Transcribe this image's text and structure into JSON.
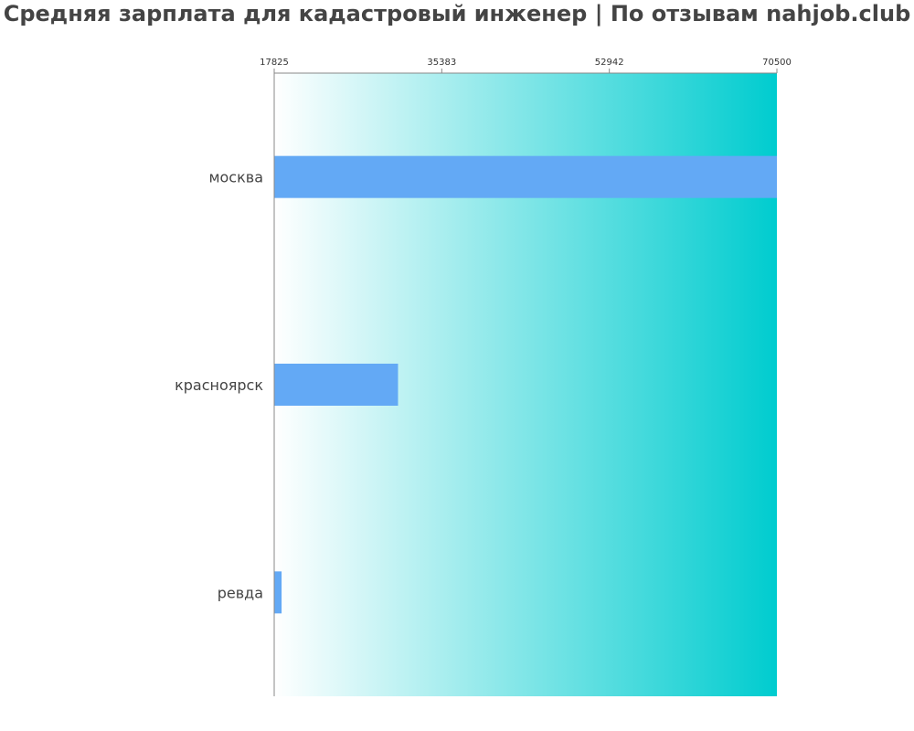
{
  "chart_data": {
    "type": "bar",
    "orientation": "horizontal",
    "title": "Средняя зарплата для кадастровый инженер | По отзывам nahjob.club",
    "categories": [
      "москва",
      "красноярск",
      "ревда"
    ],
    "values": [
      70500,
      30800,
      18600
    ],
    "xlim": [
      17825,
      70500
    ],
    "xticks": [
      "17825",
      "35383",
      "52942",
      "70500"
    ],
    "xtick_values": [
      17825,
      35383,
      52942,
      70500
    ],
    "xaxis_position": "top",
    "grid": false,
    "legend": "none",
    "colors": {
      "bar": "#63a9f5",
      "background_gradient_start": "#ffffff",
      "background_gradient_end": "#00cccf",
      "axis": "#888888",
      "label": "#444444"
    }
  }
}
